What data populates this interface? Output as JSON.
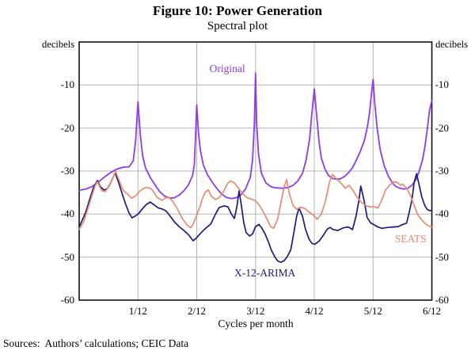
{
  "figure": {
    "title": "Figure 10: Power Generation",
    "subtitle": "Spectral plot",
    "unit_left": "decibels",
    "unit_right": "decibels",
    "x_axis_label": "Cycles per month",
    "source_note": "Sources:  Authors’ calculations; CEIC Data"
  },
  "colors": {
    "original": "#8F3BE8",
    "x12_arima": "#1C1C7A",
    "seats": "#E98B70",
    "grid": "#b4b4b4",
    "axis": "#111111"
  },
  "chart_data": {
    "type": "line",
    "title": "Figure 10: Power Generation",
    "subtitle": "Spectral plot",
    "xlabel": "Cycles per month",
    "ylabel": "decibels",
    "ylim": [
      -60,
      0
    ],
    "xlim_twelfths": [
      0,
      6
    ],
    "y_ticks": [
      -10,
      -20,
      -30,
      -40,
      -50,
      -60
    ],
    "x_ticks": [
      "1/12",
      "2/12",
      "3/12",
      "4/12",
      "5/12",
      "6/12"
    ],
    "x_unit": "cycles per month (x given in twelfths)",
    "grid": true,
    "grid_color": "#b4b4b4",
    "legend_position": "inline-labels",
    "series": [
      {
        "name": "Original",
        "color": "#8F3BE8",
        "width": 1.8,
        "label_pos": {
          "x": 2.52,
          "y": -6.3
        },
        "points": [
          [
            0,
            -34.5
          ],
          [
            0.11,
            -34.2
          ],
          [
            0.22,
            -33.6
          ],
          [
            0.32,
            -32.6
          ],
          [
            0.43,
            -31.4
          ],
          [
            0.54,
            -30.3
          ],
          [
            0.65,
            -29.5
          ],
          [
            0.75,
            -29.1
          ],
          [
            0.85,
            -29
          ],
          [
            0.92,
            -27.6
          ],
          [
            0.96,
            -23
          ],
          [
            1,
            -13.9
          ],
          [
            1.04,
            -21.5
          ],
          [
            1.08,
            -26.5
          ],
          [
            1.13,
            -29.3
          ],
          [
            1.21,
            -31.5
          ],
          [
            1.29,
            -33.2
          ],
          [
            1.37,
            -34.8
          ],
          [
            1.45,
            -35.8
          ],
          [
            1.54,
            -36.3
          ],
          [
            1.62,
            -36.2
          ],
          [
            1.7,
            -35.6
          ],
          [
            1.78,
            -34.6
          ],
          [
            1.86,
            -33.2
          ],
          [
            1.93,
            -31
          ],
          [
            1.96,
            -28.5
          ],
          [
            1.98,
            -22
          ],
          [
            2,
            -14.6
          ],
          [
            2.03,
            -21
          ],
          [
            2.06,
            -25
          ],
          [
            2.11,
            -28.5
          ],
          [
            2.18,
            -30.8
          ],
          [
            2.26,
            -32.5
          ],
          [
            2.34,
            -34
          ],
          [
            2.42,
            -35.3
          ],
          [
            2.5,
            -36.1
          ],
          [
            2.59,
            -36.4
          ],
          [
            2.67,
            -36.2
          ],
          [
            2.75,
            -35.5
          ],
          [
            2.83,
            -34.2
          ],
          [
            2.91,
            -31.5
          ],
          [
            2.95,
            -27.5
          ],
          [
            2.98,
            -19
          ],
          [
            3,
            -7.2
          ],
          [
            3.02,
            -19
          ],
          [
            3.05,
            -26
          ],
          [
            3.1,
            -30.5
          ],
          [
            3.18,
            -32.8
          ],
          [
            3.26,
            -33.6
          ],
          [
            3.34,
            -33.9
          ],
          [
            3.47,
            -34
          ],
          [
            3.56,
            -33.8
          ],
          [
            3.64,
            -33.3
          ],
          [
            3.72,
            -32.3
          ],
          [
            3.8,
            -30.5
          ],
          [
            3.86,
            -27.5
          ],
          [
            3.92,
            -22.5
          ],
          [
            3.96,
            -16.5
          ],
          [
            4,
            -10.9
          ],
          [
            4.04,
            -17
          ],
          [
            4.08,
            -23
          ],
          [
            4.12,
            -27
          ],
          [
            4.18,
            -29.5
          ],
          [
            4.24,
            -31
          ],
          [
            4.31,
            -31.7
          ],
          [
            4.38,
            -31.9
          ],
          [
            4.44,
            -31.8
          ],
          [
            4.51,
            -31.3
          ],
          [
            4.58,
            -30.4
          ],
          [
            4.65,
            -29.2
          ],
          [
            4.71,
            -27.6
          ],
          [
            4.78,
            -25.5
          ],
          [
            4.85,
            -23
          ],
          [
            4.9,
            -20
          ],
          [
            4.94,
            -16.5
          ],
          [
            4.97,
            -12.5
          ],
          [
            5,
            -8.7
          ],
          [
            5.03,
            -14.5
          ],
          [
            5.07,
            -20
          ],
          [
            5.12,
            -25
          ],
          [
            5.19,
            -28.8
          ],
          [
            5.26,
            -31.2
          ],
          [
            5.33,
            -32.8
          ],
          [
            5.39,
            -33.6
          ],
          [
            5.46,
            -34
          ],
          [
            5.53,
            -34.2
          ],
          [
            5.59,
            -34
          ],
          [
            5.66,
            -33.3
          ],
          [
            5.73,
            -32
          ],
          [
            5.78,
            -30.2
          ],
          [
            5.84,
            -27.5
          ],
          [
            5.88,
            -24.5
          ],
          [
            5.92,
            -20.5
          ],
          [
            5.96,
            -16
          ],
          [
            6,
            -13.6
          ]
        ]
      },
      {
        "name": "X-12-ARIMA",
        "color": "#1C1C7A",
        "width": 1.7,
        "label_pos": {
          "x": 3.16,
          "y": -53.7
        },
        "points": [
          [
            0,
            -43
          ],
          [
            0.05,
            -41.5
          ],
          [
            0.11,
            -39.6
          ],
          [
            0.18,
            -36.5
          ],
          [
            0.24,
            -34
          ],
          [
            0.31,
            -32.2
          ],
          [
            0.36,
            -33.6
          ],
          [
            0.42,
            -34.4
          ],
          [
            0.48,
            -34.1
          ],
          [
            0.54,
            -32.6
          ],
          [
            0.61,
            -30.4
          ],
          [
            0.67,
            -32.6
          ],
          [
            0.74,
            -35.6
          ],
          [
            0.79,
            -37.7
          ],
          [
            0.85,
            -39.8
          ],
          [
            0.9,
            -40.9
          ],
          [
            0.96,
            -40.4
          ],
          [
            1.01,
            -39.9
          ],
          [
            1.08,
            -38.7
          ],
          [
            1.14,
            -37.8
          ],
          [
            1.21,
            -37.2
          ],
          [
            1.28,
            -37.9
          ],
          [
            1.35,
            -38.6
          ],
          [
            1.41,
            -38.8
          ],
          [
            1.48,
            -39.3
          ],
          [
            1.55,
            -40.5
          ],
          [
            1.62,
            -41.8
          ],
          [
            1.7,
            -42.9
          ],
          [
            1.78,
            -43.8
          ],
          [
            1.86,
            -44.8
          ],
          [
            1.94,
            -46.2
          ],
          [
            1.99,
            -45.6
          ],
          [
            2.07,
            -44.4
          ],
          [
            2.15,
            -43.3
          ],
          [
            2.24,
            -42.3
          ],
          [
            2.32,
            -40
          ],
          [
            2.38,
            -38.5
          ],
          [
            2.46,
            -38.1
          ],
          [
            2.53,
            -38.3
          ],
          [
            2.59,
            -40
          ],
          [
            2.64,
            -41
          ],
          [
            2.68,
            -38.5
          ],
          [
            2.72,
            -34.6
          ],
          [
            2.76,
            -38
          ],
          [
            2.8,
            -42
          ],
          [
            2.84,
            -44.3
          ],
          [
            2.9,
            -45.1
          ],
          [
            2.95,
            -44.6
          ],
          [
            3,
            -42.9
          ],
          [
            3.06,
            -42.4
          ],
          [
            3.11,
            -43.3
          ],
          [
            3.16,
            -44.5
          ],
          [
            3.22,
            -46.5
          ],
          [
            3.27,
            -48.4
          ],
          [
            3.33,
            -50
          ],
          [
            3.38,
            -50.9
          ],
          [
            3.43,
            -51.2
          ],
          [
            3.49,
            -50.8
          ],
          [
            3.54,
            -49.9
          ],
          [
            3.6,
            -48.3
          ],
          [
            3.65,
            -44.5
          ],
          [
            3.7,
            -40.5
          ],
          [
            3.74,
            -38.6
          ],
          [
            3.8,
            -40.5
          ],
          [
            3.85,
            -43.5
          ],
          [
            3.91,
            -45.8
          ],
          [
            3.96,
            -46.8
          ],
          [
            4.01,
            -47
          ],
          [
            4.08,
            -46.3
          ],
          [
            4.15,
            -45
          ],
          [
            4.22,
            -43.5
          ],
          [
            4.27,
            -43.1
          ],
          [
            4.32,
            -43.6
          ],
          [
            4.4,
            -43.8
          ],
          [
            4.49,
            -43.2
          ],
          [
            4.58,
            -43
          ],
          [
            4.65,
            -43.6
          ],
          [
            4.71,
            -40.5
          ],
          [
            4.76,
            -36.8
          ],
          [
            4.79,
            -33.5
          ],
          [
            4.85,
            -37
          ],
          [
            4.9,
            -40.8
          ],
          [
            4.96,
            -42.1
          ],
          [
            5.01,
            -42.4
          ],
          [
            5.08,
            -43
          ],
          [
            5.15,
            -43.3
          ],
          [
            5.25,
            -43.1
          ],
          [
            5.35,
            -43
          ],
          [
            5.43,
            -42.9
          ],
          [
            5.49,
            -42.5
          ],
          [
            5.57,
            -42.1
          ],
          [
            5.61,
            -39.9
          ],
          [
            5.66,
            -36.7
          ],
          [
            5.7,
            -32.6
          ],
          [
            5.74,
            -30.6
          ],
          [
            5.79,
            -33.6
          ],
          [
            5.83,
            -36.1
          ],
          [
            5.88,
            -38
          ],
          [
            5.92,
            -38.9
          ],
          [
            5.96,
            -39.2
          ],
          [
            6,
            -39.1
          ]
        ]
      },
      {
        "name": "SEATS",
        "color": "#E98B70",
        "width": 1.7,
        "label_pos": {
          "x": 5.64,
          "y": -45.8
        },
        "points": [
          [
            0,
            -43.5
          ],
          [
            0.07,
            -42
          ],
          [
            0.13,
            -39.5
          ],
          [
            0.2,
            -36.5
          ],
          [
            0.27,
            -33.5
          ],
          [
            0.31,
            -32.5
          ],
          [
            0.38,
            -34.5
          ],
          [
            0.44,
            -34.8
          ],
          [
            0.51,
            -33.5
          ],
          [
            0.58,
            -31.3
          ],
          [
            0.62,
            -30.1
          ],
          [
            0.69,
            -32.5
          ],
          [
            0.75,
            -34.5
          ],
          [
            0.82,
            -35.3
          ],
          [
            0.89,
            -36.3
          ],
          [
            0.96,
            -35.8
          ],
          [
            1.02,
            -34.8
          ],
          [
            1.09,
            -34.1
          ],
          [
            1.14,
            -33.8
          ],
          [
            1.21,
            -34
          ],
          [
            1.25,
            -34.5
          ],
          [
            1.33,
            -36.2
          ],
          [
            1.41,
            -36.8
          ],
          [
            1.47,
            -36.3
          ],
          [
            1.52,
            -36
          ],
          [
            1.59,
            -37
          ],
          [
            1.67,
            -38.8
          ],
          [
            1.75,
            -40.9
          ],
          [
            1.83,
            -42.5
          ],
          [
            1.9,
            -43.2
          ],
          [
            1.95,
            -42
          ],
          [
            1.99,
            -40.5
          ],
          [
            2.05,
            -38.5
          ],
          [
            2.1,
            -36.3
          ],
          [
            2.15,
            -34.8
          ],
          [
            2.2,
            -34.4
          ],
          [
            2.25,
            -35.9
          ],
          [
            2.32,
            -36.6
          ],
          [
            2.38,
            -36.2
          ],
          [
            2.45,
            -34.9
          ],
          [
            2.52,
            -33
          ],
          [
            2.57,
            -32.3
          ],
          [
            2.64,
            -32.7
          ],
          [
            2.71,
            -34
          ],
          [
            2.79,
            -35.4
          ],
          [
            2.86,
            -36.2
          ],
          [
            2.92,
            -36.5
          ],
          [
            2.99,
            -36.8
          ],
          [
            3.06,
            -37.8
          ],
          [
            3.12,
            -39.2
          ],
          [
            3.19,
            -41
          ],
          [
            3.26,
            -43
          ],
          [
            3.31,
            -43.3
          ],
          [
            3.38,
            -41
          ],
          [
            3.43,
            -37.5
          ],
          [
            3.49,
            -33.5
          ],
          [
            3.53,
            -32
          ],
          [
            3.58,
            -35.5
          ],
          [
            3.64,
            -38
          ],
          [
            3.7,
            -38.9
          ],
          [
            3.77,
            -38.4
          ],
          [
            3.84,
            -38.7
          ],
          [
            3.91,
            -39.5
          ],
          [
            3.99,
            -40.3
          ],
          [
            4.05,
            -41.2
          ],
          [
            4.12,
            -40
          ],
          [
            4.19,
            -37
          ],
          [
            4.26,
            -32.5
          ],
          [
            4.31,
            -30.8
          ],
          [
            4.38,
            -31.8
          ],
          [
            4.44,
            -32.6
          ],
          [
            4.53,
            -34
          ],
          [
            4.59,
            -33.3
          ],
          [
            4.66,
            -34.5
          ],
          [
            4.73,
            -36.1
          ],
          [
            4.81,
            -37.4
          ],
          [
            4.88,
            -38
          ],
          [
            4.94,
            -38.3
          ],
          [
            5.01,
            -38.3
          ],
          [
            5.08,
            -38.6
          ],
          [
            5.15,
            -36.7
          ],
          [
            5.21,
            -34.5
          ],
          [
            5.28,
            -33.3
          ],
          [
            5.35,
            -32.5
          ],
          [
            5.41,
            -32.6
          ],
          [
            5.47,
            -33.3
          ],
          [
            5.5,
            -33
          ],
          [
            5.57,
            -34
          ],
          [
            5.64,
            -35.8
          ],
          [
            5.7,
            -38
          ],
          [
            5.76,
            -40.2
          ],
          [
            5.83,
            -41.4
          ],
          [
            5.9,
            -42.4
          ],
          [
            5.97,
            -42.9
          ],
          [
            6,
            -43
          ]
        ]
      }
    ]
  }
}
